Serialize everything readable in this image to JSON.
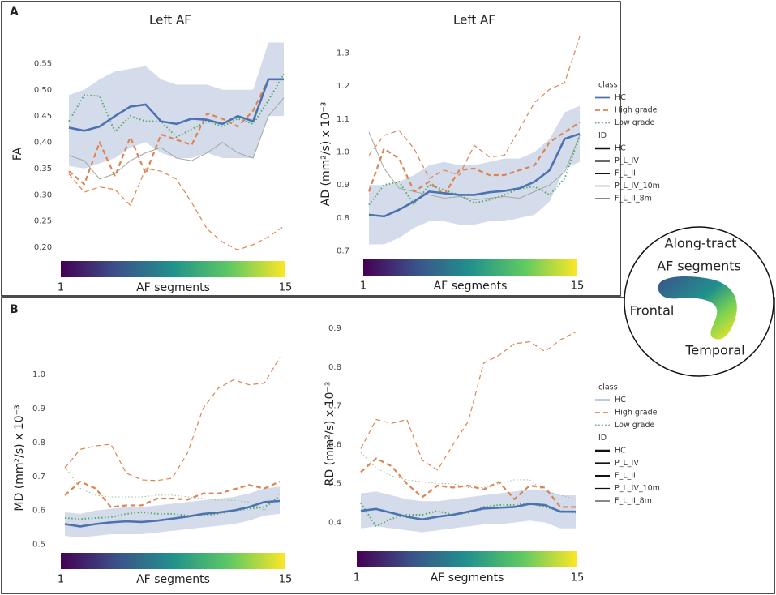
{
  "panels": [
    "A",
    "B"
  ],
  "inset": {
    "title_lines": [
      "Along-tract",
      "AF segments"
    ],
    "start_label": "Frontal",
    "end_label": "Temporal"
  },
  "chart_data": [
    {
      "type": "line",
      "title": "Left AF",
      "ylabel": "FA",
      "xlabel": "AF segments",
      "x": [
        1,
        2,
        3,
        4,
        5,
        6,
        7,
        8,
        9,
        10,
        11,
        12,
        13,
        14,
        15
      ],
      "xlim": [
        1,
        15
      ],
      "xticks": [
        1,
        15
      ],
      "ylim": [
        0.18,
        0.58
      ],
      "yticks": [
        {
          "value": 0.2,
          "label": "0.20"
        },
        0.25,
        {
          "value": 0.3,
          "label": "0.30"
        },
        0.35,
        {
          "value": 0.4,
          "label": "0.40"
        },
        0.45,
        {
          "value": 0.5,
          "label": "0.50"
        },
        0.55
      ],
      "band_color": "#b8c4e0",
      "series": [
        {
          "color": "#4c72b0",
          "dash": "solid",
          "width": 2.6,
          "values": [
            0.428,
            0.422,
            0.43,
            0.45,
            0.468,
            0.472,
            0.44,
            0.435,
            0.445,
            0.443,
            0.435,
            0.45,
            0.44,
            0.52,
            0.52
          ],
          "lower": [
            0.355,
            0.35,
            0.36,
            0.37,
            0.39,
            0.4,
            0.38,
            0.37,
            0.37,
            0.38,
            0.37,
            0.37,
            0.37,
            0.45,
            0.45
          ],
          "upper": [
            0.49,
            0.5,
            0.52,
            0.535,
            0.54,
            0.545,
            0.52,
            0.51,
            0.51,
            0.51,
            0.5,
            0.5,
            0.5,
            0.59,
            0.59
          ]
        },
        {
          "color": "#dd8452",
          "dash": "dashed",
          "width": 2.2,
          "values": [
            0.345,
            0.32,
            0.4,
            0.335,
            0.41,
            0.34,
            0.415,
            0.405,
            0.395,
            0.455,
            0.445,
            0.43,
            0.46,
            0.52,
            0.52
          ]
        },
        {
          "color": "#dd8452",
          "dash": "dashed",
          "width": 1.2,
          "values": [
            0.34,
            0.305,
            0.315,
            0.31,
            0.28,
            0.35,
            0.345,
            0.33,
            0.285,
            0.235,
            0.21,
            0.195,
            0.205,
            0.22,
            0.24
          ]
        },
        {
          "color": "#55a868",
          "dash": "dotted",
          "width": 2,
          "values": [
            0.44,
            0.49,
            0.488,
            0.42,
            0.45,
            0.44,
            0.44,
            0.41,
            0.425,
            0.44,
            0.43,
            0.445,
            0.435,
            0.48,
            0.53
          ]
        },
        {
          "color": "#a0a8a0",
          "dash": "solid",
          "width": 1,
          "values": [
            0.375,
            0.365,
            0.33,
            0.34,
            0.365,
            0.38,
            0.39,
            0.37,
            0.365,
            0.38,
            0.4,
            0.38,
            0.37,
            0.45,
            0.485
          ]
        }
      ]
    },
    {
      "type": "line",
      "title": "Left AF",
      "ylabel": "AD (mm²/s) x 10⁻³",
      "xlabel": "AF segments",
      "x": [
        1,
        2,
        3,
        4,
        5,
        6,
        7,
        8,
        9,
        10,
        11,
        12,
        13,
        14,
        15
      ],
      "xlim": [
        1,
        15
      ],
      "xticks": [
        1,
        15
      ],
      "ylim": [
        0.65,
        1.35
      ],
      "yticks": [
        0.7,
        0.8,
        0.9,
        {
          "value": 1.0,
          "label": "1.0"
        },
        1.1,
        1.2,
        1.3
      ],
      "band_color": "#b8c4e0",
      "legend": {
        "class_title": "class",
        "classes": [
          {
            "name": "HC",
            "color": "#4c72b0",
            "dash": "solid"
          },
          {
            "name": "High grade",
            "color": "#dd8452",
            "dash": "dashed"
          },
          {
            "name": "Low grade",
            "color": "#55a868",
            "dash": "dotted"
          }
        ],
        "id_title": "ID"
      },
      "series": [
        {
          "name": "HC",
          "color": "#4c72b0",
          "dash": "solid",
          "width": 2.6,
          "values": [
            0.81,
            0.805,
            0.825,
            0.85,
            0.88,
            0.875,
            0.87,
            0.87,
            0.878,
            0.882,
            0.89,
            0.91,
            0.945,
            1.04,
            1.055
          ],
          "lower": [
            0.72,
            0.72,
            0.74,
            0.77,
            0.79,
            0.79,
            0.78,
            0.78,
            0.79,
            0.79,
            0.8,
            0.81,
            0.85,
            0.95,
            0.97
          ],
          "upper": [
            0.9,
            0.9,
            0.91,
            0.93,
            0.96,
            0.97,
            0.96,
            0.96,
            0.97,
            0.98,
            0.98,
            1.0,
            1.04,
            1.12,
            1.14
          ]
        },
        {
          "name": "P_L_IV",
          "color": "#dd8452",
          "dash": "dashed",
          "width": 2.2,
          "values": [
            0.88,
            1.01,
            0.98,
            0.88,
            0.91,
            0.87,
            0.945,
            0.95,
            0.93,
            0.93,
            0.945,
            0.96,
            1.03,
            1.06,
            1.09
          ]
        },
        {
          "name": "F_L_II",
          "color": "#55a868",
          "dash": "dotted",
          "width": 2,
          "values": [
            0.84,
            0.9,
            0.91,
            0.84,
            0.9,
            0.885,
            0.87,
            0.845,
            0.855,
            0.87,
            0.89,
            0.895,
            0.87,
            0.92,
            1.05
          ]
        },
        {
          "name": "P_L_IV_10m",
          "color": "#dd8452",
          "dash": "dashed",
          "width": 1.2,
          "values": [
            0.99,
            1.05,
            1.065,
            1.01,
            0.92,
            0.945,
            0.93,
            1.02,
            0.985,
            0.99,
            1.07,
            1.15,
            1.19,
            1.21,
            1.35
          ]
        },
        {
          "name": "F_L_II_8m",
          "color": "#a0a8a0",
          "dash": "solid",
          "width": 1,
          "values": [
            1.06,
            0.95,
            0.89,
            0.88,
            0.87,
            0.86,
            0.865,
            0.855,
            0.86,
            0.865,
            0.86,
            0.88,
            0.9,
            0.94,
            1.05
          ]
        }
      ]
    },
    {
      "type": "line",
      "ylabel": "MD (mm²/s) x 10⁻³",
      "xlabel": "AF segments",
      "x": [
        1,
        2,
        3,
        4,
        5,
        6,
        7,
        8,
        9,
        10,
        11,
        12,
        13,
        14,
        15
      ],
      "xlim": [
        1,
        15
      ],
      "xticks": [
        1,
        15
      ],
      "ylim": [
        0.48,
        1.06
      ],
      "yticks": [
        0.5,
        0.6,
        0.7,
        0.8,
        0.9,
        {
          "value": 1.0,
          "label": "1.0"
        }
      ],
      "band_color": "#b8c4e0",
      "series": [
        {
          "color": "#4c72b0",
          "dash": "solid",
          "width": 2.6,
          "values": [
            0.56,
            0.553,
            0.56,
            0.565,
            0.568,
            0.566,
            0.57,
            0.576,
            0.582,
            0.59,
            0.594,
            0.6,
            0.61,
            0.625,
            0.628
          ],
          "lower": [
            0.525,
            0.52,
            0.525,
            0.53,
            0.53,
            0.53,
            0.535,
            0.54,
            0.545,
            0.55,
            0.555,
            0.56,
            0.57,
            0.585,
            0.59
          ],
          "upper": [
            0.595,
            0.59,
            0.6,
            0.605,
            0.61,
            0.61,
            0.615,
            0.62,
            0.625,
            0.63,
            0.635,
            0.64,
            0.65,
            0.665,
            0.67
          ]
        },
        {
          "color": "#dd8452",
          "dash": "dashed",
          "width": 2.2,
          "values": [
            0.645,
            0.685,
            0.665,
            0.61,
            0.615,
            0.615,
            0.635,
            0.635,
            0.632,
            0.65,
            0.65,
            0.662,
            0.675,
            0.665,
            0.685
          ]
        },
        {
          "color": "#dd8452",
          "dash": "dashed",
          "width": 1.2,
          "values": [
            0.725,
            0.78,
            0.79,
            0.795,
            0.71,
            0.69,
            0.688,
            0.695,
            0.77,
            0.9,
            0.96,
            0.985,
            0.97,
            0.975,
            1.05
          ]
        },
        {
          "color": "#55a868",
          "dash": "dotted",
          "width": 2,
          "values": [
            0.578,
            0.575,
            0.578,
            0.58,
            0.59,
            0.595,
            0.59,
            0.59,
            0.585,
            0.585,
            0.59,
            0.6,
            0.605,
            0.61,
            0.64
          ]
        },
        {
          "color": "#8fc08f",
          "dash": "dotted",
          "width": 1,
          "values": [
            0.73,
            0.665,
            0.645,
            0.64,
            0.64,
            0.64,
            0.645,
            0.645,
            0.64,
            0.635,
            0.63,
            0.63,
            0.625,
            0.6,
            0.65
          ]
        }
      ]
    },
    {
      "type": "line",
      "ylabel": "RD (mm²/s) x 10⁻³",
      "xlabel": "AF segments",
      "x": [
        1,
        2,
        3,
        4,
        5,
        6,
        7,
        8,
        9,
        10,
        11,
        12,
        13,
        14,
        15
      ],
      "xlim": [
        1,
        15
      ],
      "xticks": [
        1,
        15
      ],
      "ylim": [
        0.37,
        0.91
      ],
      "yticks": [
        0.4,
        0.5,
        0.6,
        0.7,
        0.8,
        0.9
      ],
      "band_color": "#b8c4e0",
      "legend": {
        "class_title": "class",
        "classes": [
          {
            "name": "HC",
            "color": "#4c72b0",
            "dash": "solid"
          },
          {
            "name": "High grade",
            "color": "#dd8452",
            "dash": "dashed"
          },
          {
            "name": "Low grade",
            "color": "#55a868",
            "dash": "dotted"
          }
        ],
        "id_title": "ID"
      },
      "series": [
        {
          "name": "HC",
          "color": "#4c72b0",
          "dash": "solid",
          "width": 2.6,
          "values": [
            0.43,
            0.435,
            0.425,
            0.415,
            0.408,
            0.415,
            0.42,
            0.428,
            0.436,
            0.438,
            0.44,
            0.448,
            0.445,
            0.428,
            0.428
          ],
          "lower": [
            0.385,
            0.39,
            0.385,
            0.38,
            0.375,
            0.38,
            0.385,
            0.39,
            0.395,
            0.395,
            0.4,
            0.405,
            0.4,
            0.385,
            0.385
          ],
          "upper": [
            0.475,
            0.48,
            0.47,
            0.46,
            0.455,
            0.455,
            0.46,
            0.465,
            0.47,
            0.475,
            0.48,
            0.485,
            0.485,
            0.47,
            0.47
          ]
        },
        {
          "name": "P_L_IV",
          "color": "#dd8452",
          "dash": "dashed",
          "width": 2.2,
          "values": [
            0.53,
            0.565,
            0.545,
            0.5,
            0.465,
            0.495,
            0.49,
            0.495,
            0.485,
            0.505,
            0.46,
            0.495,
            0.49,
            0.44,
            0.44
          ]
        },
        {
          "name": "F_L_II",
          "color": "#55a868",
          "dash": "dotted",
          "width": 2,
          "values": [
            0.45,
            0.39,
            0.41,
            0.42,
            0.42,
            0.43,
            0.42,
            0.425,
            0.44,
            0.445,
            0.445,
            0.45,
            0.44,
            0.43,
            0.425
          ]
        },
        {
          "name": "P_L_IV_10m",
          "color": "#dd8452",
          "dash": "dashed",
          "width": 1.2,
          "values": [
            0.59,
            0.665,
            0.655,
            0.665,
            0.56,
            0.535,
            0.6,
            0.66,
            0.81,
            0.83,
            0.86,
            0.865,
            0.84,
            0.87,
            0.89
          ]
        },
        {
          "name": "F_L_II_8m",
          "color": "#a8b8a8",
          "dash": "dotted",
          "width": 1,
          "values": [
            0.58,
            0.54,
            0.52,
            0.51,
            0.505,
            0.5,
            0.5,
            0.49,
            0.49,
            0.5,
            0.51,
            0.51,
            0.48,
            0.47,
            0.46
          ]
        }
      ]
    }
  ]
}
